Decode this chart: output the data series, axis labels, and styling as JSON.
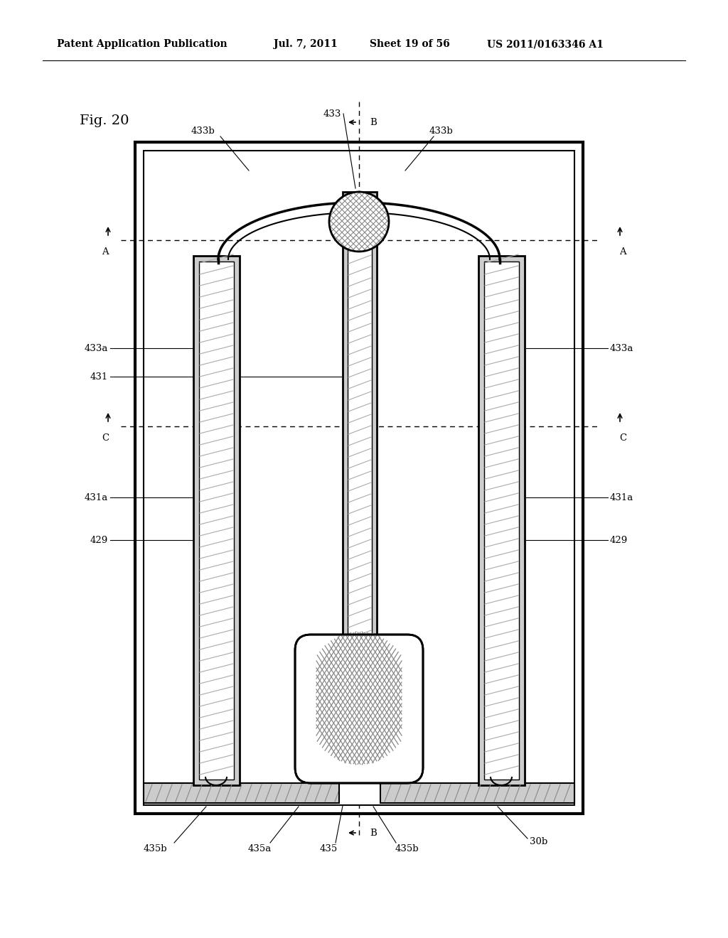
{
  "title_line1": "Patent Application Publication",
  "title_date": "Jul. 7, 2011",
  "title_sheet": "Sheet 19 of 56",
  "title_patent": "US 2011/0163346 A1",
  "fig_label": "Fig. 20",
  "bg_color": "#ffffff",
  "line_color": "#000000"
}
